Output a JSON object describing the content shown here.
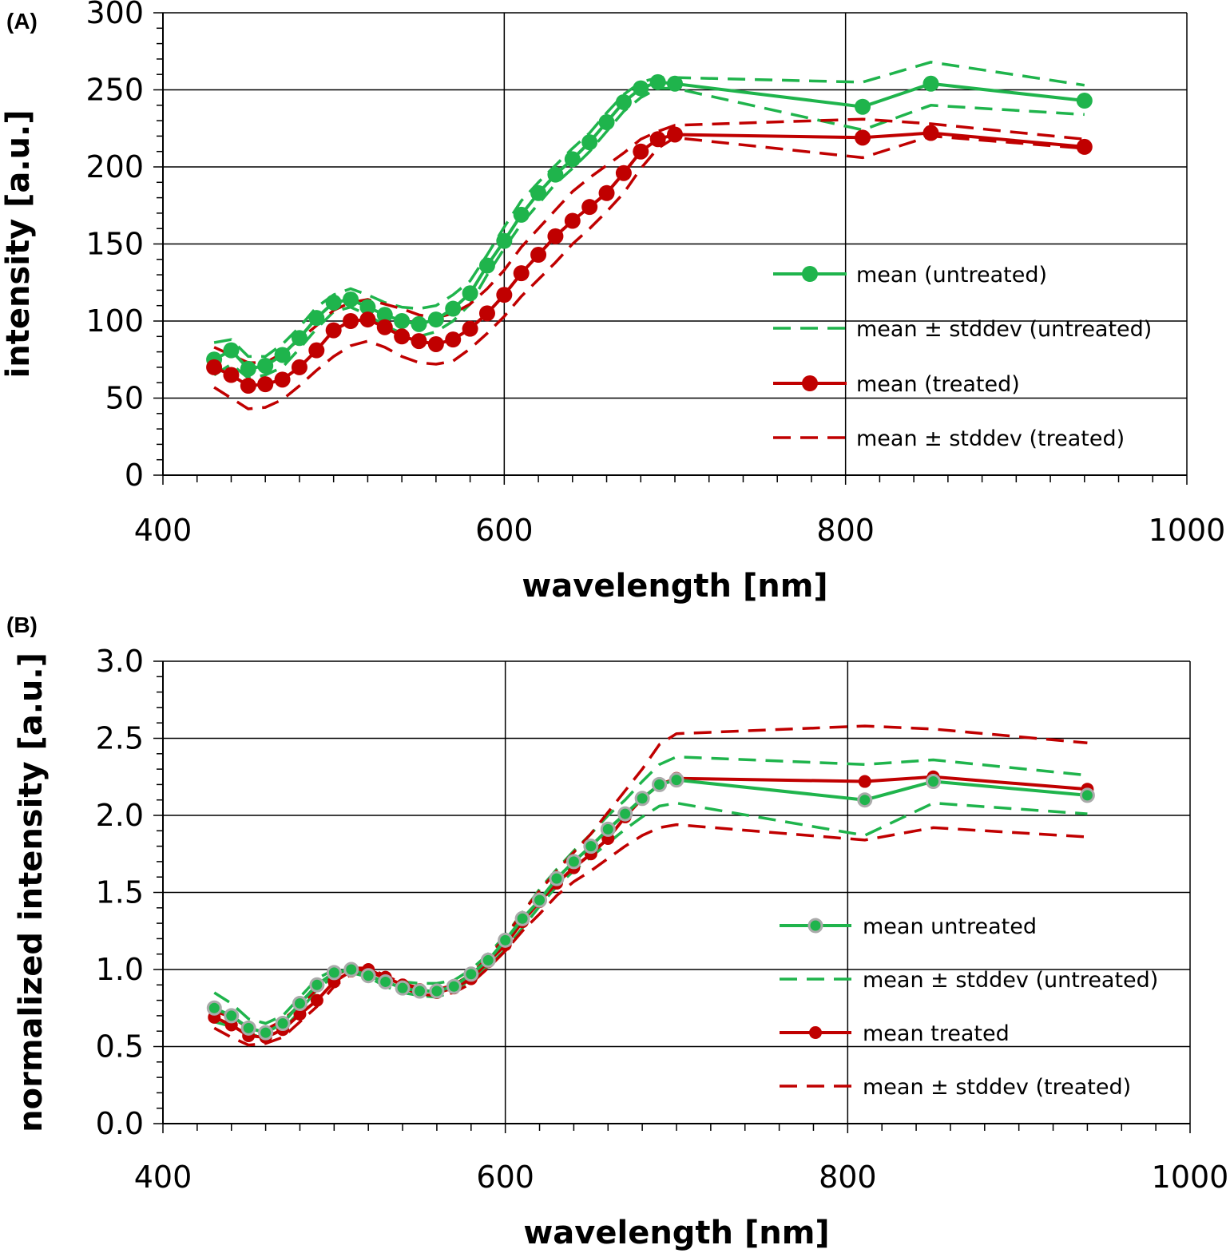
{
  "colors": {
    "untreated": "#1fb44c",
    "treated": "#c00000",
    "grid": "#000000",
    "marker_ring": "#aaaaaa"
  },
  "chart_data": [
    {
      "panel_label": "(A)",
      "type": "line",
      "xlabel": "wavelength [nm]",
      "ylabel": "intensity [a.u.]",
      "xlim": [
        400,
        1000
      ],
      "ylim": [
        0,
        300
      ],
      "x_ticks": [
        400,
        600,
        800,
        1000
      ],
      "x_tick_labels": [
        "400",
        "600",
        "800",
        "1000"
      ],
      "y_ticks": [
        0,
        50,
        100,
        150,
        200,
        250,
        300
      ],
      "y_tick_labels": [
        "0",
        "50",
        "100",
        "150",
        "200",
        "250",
        "300"
      ],
      "grid": true,
      "legend_position": "right",
      "x": [
        430,
        440,
        450,
        460,
        470,
        480,
        490,
        500,
        510,
        520,
        530,
        540,
        550,
        560,
        570,
        580,
        590,
        600,
        610,
        620,
        630,
        640,
        650,
        660,
        670,
        680,
        690,
        700,
        810,
        850,
        940
      ],
      "series": [
        {
          "name": "mean (untreated)",
          "style": "solid-marker",
          "color_key": "untreated",
          "values": [
            75,
            81,
            69,
            71,
            78,
            89,
            102,
            112,
            114,
            109,
            104,
            100,
            98,
            101,
            108,
            118,
            136,
            152,
            169,
            183,
            195,
            205,
            216,
            229,
            242,
            251,
            255,
            254,
            239,
            254,
            243
          ]
        },
        {
          "name": "mean ± stddev (untreated)",
          "style": "dashed",
          "color_key": "untreated",
          "values": [
            86,
            88,
            77,
            77,
            85,
            96,
            109,
            117,
            121,
            117,
            112,
            109,
            108,
            110,
            117,
            126,
            143,
            161,
            178,
            190,
            201,
            212,
            222,
            235,
            247,
            255,
            258,
            258,
            255,
            268,
            253
          ]
        },
        {
          "name": "mean ± stddev (untreated)",
          "style": "dashed",
          "color_key": "untreated",
          "values": [
            65,
            72,
            63,
            65,
            70,
            82,
            95,
            106,
            109,
            104,
            97,
            92,
            90,
            93,
            100,
            111,
            130,
            147,
            163,
            176,
            189,
            199,
            210,
            223,
            236,
            245,
            251,
            251,
            224,
            240,
            234
          ]
        },
        {
          "name": "mean (treated)",
          "style": "solid-marker",
          "color_key": "treated",
          "values": [
            70,
            65,
            58,
            59,
            62,
            70,
            81,
            94,
            100,
            101,
            96,
            90,
            87,
            85,
            88,
            95,
            105,
            117,
            131,
            143,
            155,
            165,
            174,
            183,
            196,
            210,
            218,
            221,
            219,
            222,
            213
          ]
        },
        {
          "name": "mean ± stddev (treated)",
          "style": "dashed",
          "color_key": "treated",
          "values": [
            83,
            78,
            73,
            73,
            79,
            88,
            97,
            107,
            112,
            114,
            111,
            108,
            104,
            102,
            105,
            111,
            121,
            133,
            148,
            160,
            172,
            184,
            193,
            201,
            209,
            218,
            223,
            227,
            231,
            228,
            218
          ]
        },
        {
          "name": "mean ± stddev (treated)",
          "style": "dashed",
          "color_key": "treated",
          "values": [
            57,
            50,
            43,
            44,
            49,
            58,
            68,
            77,
            84,
            87,
            83,
            77,
            73,
            72,
            74,
            82,
            92,
            103,
            116,
            127,
            138,
            150,
            160,
            171,
            183,
            199,
            212,
            219,
            206,
            220,
            212
          ]
        }
      ]
    },
    {
      "panel_label": "(B)",
      "type": "line",
      "xlabel": "wavelength [nm]",
      "ylabel": "normalized intensity [a.u.]",
      "xlim": [
        400,
        1000
      ],
      "ylim": [
        0,
        3
      ],
      "x_ticks": [
        400,
        600,
        800,
        1000
      ],
      "x_tick_labels": [
        "400",
        "600",
        "800",
        "1000"
      ],
      "y_ticks": [
        0,
        0.5,
        1.0,
        1.5,
        2.0,
        2.5,
        3.0
      ],
      "y_tick_labels": [
        "0.0",
        "0.5",
        "1.0",
        "1.5",
        "2.0",
        "2.5",
        "3.0"
      ],
      "grid": true,
      "legend_position": "right",
      "x": [
        430,
        440,
        450,
        460,
        470,
        480,
        490,
        500,
        510,
        520,
        530,
        540,
        550,
        560,
        570,
        580,
        590,
        600,
        610,
        620,
        630,
        640,
        650,
        660,
        670,
        680,
        690,
        700,
        810,
        850,
        940
      ],
      "series": [
        {
          "name": "mean untreated",
          "style": "solid-marker-ring",
          "color_key": "untreated",
          "values": [
            0.75,
            0.7,
            0.62,
            0.59,
            0.65,
            0.78,
            0.9,
            0.98,
            1.0,
            0.96,
            0.92,
            0.88,
            0.86,
            0.86,
            0.89,
            0.97,
            1.06,
            1.19,
            1.33,
            1.45,
            1.59,
            1.7,
            1.8,
            1.91,
            2.01,
            2.11,
            2.2,
            2.23,
            2.1,
            2.22,
            2.13
          ]
        },
        {
          "name": "mean ± stddev (untreated)",
          "style": "dashed",
          "color_key": "untreated",
          "values": [
            0.85,
            0.78,
            0.68,
            0.65,
            0.7,
            0.82,
            0.94,
            1.0,
            1.01,
            0.99,
            0.96,
            0.92,
            0.91,
            0.91,
            0.93,
            1.0,
            1.1,
            1.22,
            1.37,
            1.52,
            1.65,
            1.77,
            1.88,
            2.0,
            2.1,
            2.22,
            2.33,
            2.38,
            2.33,
            2.36,
            2.26
          ]
        },
        {
          "name": "mean ± stddev (untreated)",
          "style": "dashed",
          "color_key": "untreated",
          "values": [
            0.66,
            0.63,
            0.58,
            0.56,
            0.61,
            0.73,
            0.87,
            0.96,
            0.98,
            0.95,
            0.89,
            0.85,
            0.83,
            0.82,
            0.86,
            0.94,
            1.02,
            1.13,
            1.27,
            1.41,
            1.54,
            1.64,
            1.73,
            1.82,
            1.91,
            1.99,
            2.06,
            2.08,
            1.87,
            2.08,
            2.01
          ]
        },
        {
          "name": "mean treated",
          "style": "solid-marker",
          "color_key": "treated",
          "values": [
            0.69,
            0.64,
            0.57,
            0.56,
            0.61,
            0.71,
            0.8,
            0.92,
            0.99,
            1.0,
            0.95,
            0.9,
            0.87,
            0.85,
            0.88,
            0.94,
            1.05,
            1.16,
            1.31,
            1.44,
            1.56,
            1.66,
            1.75,
            1.85,
            1.99,
            2.11,
            2.2,
            2.24,
            2.22,
            2.25,
            2.17
          ]
        },
        {
          "name": "mean ± stddev (treated)",
          "style": "dashed",
          "color_key": "treated",
          "values": [
            0.73,
            0.69,
            0.62,
            0.61,
            0.67,
            0.77,
            0.87,
            0.96,
            1.01,
            1.01,
            0.96,
            0.91,
            0.88,
            0.87,
            0.9,
            0.97,
            1.08,
            1.21,
            1.37,
            1.51,
            1.64,
            1.76,
            1.88,
            2.02,
            2.16,
            2.3,
            2.46,
            2.53,
            2.58,
            2.56,
            2.47
          ]
        },
        {
          "name": "mean ± stddev (treated)",
          "style": "dashed",
          "color_key": "treated",
          "values": [
            0.62,
            0.56,
            0.51,
            0.52,
            0.56,
            0.66,
            0.76,
            0.89,
            0.97,
            0.99,
            0.94,
            0.88,
            0.84,
            0.83,
            0.85,
            0.91,
            1.01,
            1.12,
            1.25,
            1.36,
            1.48,
            1.57,
            1.64,
            1.72,
            1.8,
            1.87,
            1.92,
            1.94,
            1.84,
            1.92,
            1.86
          ]
        }
      ],
      "legend": [
        {
          "label": "mean untreated",
          "series_index": 0
        },
        {
          "label": "mean ± stddev (untreated)",
          "series_index": 1
        },
        {
          "label": "mean treated",
          "series_index": 3
        },
        {
          "label": "mean ± stddev (treated)",
          "series_index": 4
        }
      ]
    }
  ]
}
